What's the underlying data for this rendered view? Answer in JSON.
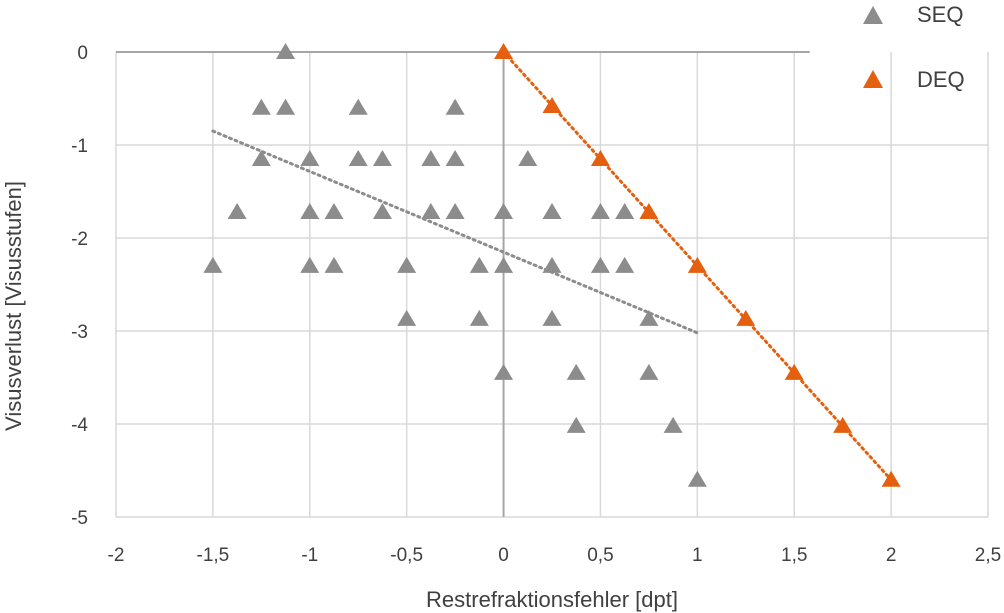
{
  "chart_data": {
    "type": "scatter",
    "xlabel": "Restrefraktionsfehler [dpt]",
    "ylabel": "Visusverlust [Visusstufen]",
    "xlim": [
      -2,
      2.5
    ],
    "ylim": [
      -5,
      0
    ],
    "x_ticks": [
      -2,
      -1.5,
      -1,
      -0.5,
      0,
      0.5,
      1,
      1.5,
      2,
      2.5
    ],
    "x_tick_labels": [
      "-2",
      "-1,5",
      "-1",
      "-0,5",
      "0",
      "0,5",
      "1",
      "1,5",
      "2",
      "2,5"
    ],
    "y_ticks": [
      0,
      -1,
      -2,
      -3,
      -4,
      -5
    ],
    "y_tick_labels": [
      "0",
      "-1",
      "-2",
      "-3",
      "-4",
      "-5"
    ],
    "grid": true,
    "legend_position": "top-right",
    "series": [
      {
        "name": "SEQ",
        "color": "#8c8c8c",
        "marker": "triangle",
        "points": [
          [
            -1.125,
            0
          ],
          [
            -1.25,
            -0.6
          ],
          [
            -1.125,
            -0.6
          ],
          [
            -0.75,
            -0.6
          ],
          [
            -0.25,
            -0.6
          ],
          [
            -1.25,
            -1.15
          ],
          [
            -1,
            -1.15
          ],
          [
            -0.75,
            -1.15
          ],
          [
            -0.625,
            -1.15
          ],
          [
            -0.375,
            -1.15
          ],
          [
            -0.25,
            -1.15
          ],
          [
            0.125,
            -1.15
          ],
          [
            -1.375,
            -1.72
          ],
          [
            -1,
            -1.72
          ],
          [
            -0.875,
            -1.72
          ],
          [
            -0.625,
            -1.72
          ],
          [
            -0.375,
            -1.72
          ],
          [
            -0.25,
            -1.72
          ],
          [
            0,
            -1.72
          ],
          [
            0.25,
            -1.72
          ],
          [
            0.5,
            -1.72
          ],
          [
            0.625,
            -1.72
          ],
          [
            -1.5,
            -2.3
          ],
          [
            -1,
            -2.3
          ],
          [
            -0.875,
            -2.3
          ],
          [
            -0.5,
            -2.3
          ],
          [
            -0.125,
            -2.3
          ],
          [
            0,
            -2.3
          ],
          [
            0.25,
            -2.3
          ],
          [
            0.5,
            -2.3
          ],
          [
            0.625,
            -2.3
          ],
          [
            -0.5,
            -2.87
          ],
          [
            -0.125,
            -2.87
          ],
          [
            0.25,
            -2.87
          ],
          [
            0.75,
            -2.87
          ],
          [
            0,
            -3.45
          ],
          [
            0.375,
            -3.45
          ],
          [
            0.75,
            -3.45
          ],
          [
            0.375,
            -4.02
          ],
          [
            0.875,
            -4.02
          ],
          [
            1,
            -4.6
          ]
        ],
        "trendline": {
          "from": [
            -1.5,
            -0.85
          ],
          "to": [
            1,
            -3.02
          ],
          "color": "#8c8c8c"
        }
      },
      {
        "name": "DEQ",
        "color": "#e4600e",
        "marker": "triangle",
        "points": [
          [
            0,
            0
          ],
          [
            0.25,
            -0.58
          ],
          [
            0.5,
            -1.15
          ],
          [
            0.75,
            -1.72
          ],
          [
            1,
            -2.3
          ],
          [
            1.25,
            -2.87
          ],
          [
            1.5,
            -3.45
          ],
          [
            1.75,
            -4.02
          ],
          [
            2,
            -4.6
          ]
        ],
        "trendline": {
          "from": [
            0,
            0
          ],
          "to": [
            2,
            -4.6
          ],
          "color": "#e4600e"
        }
      }
    ]
  }
}
